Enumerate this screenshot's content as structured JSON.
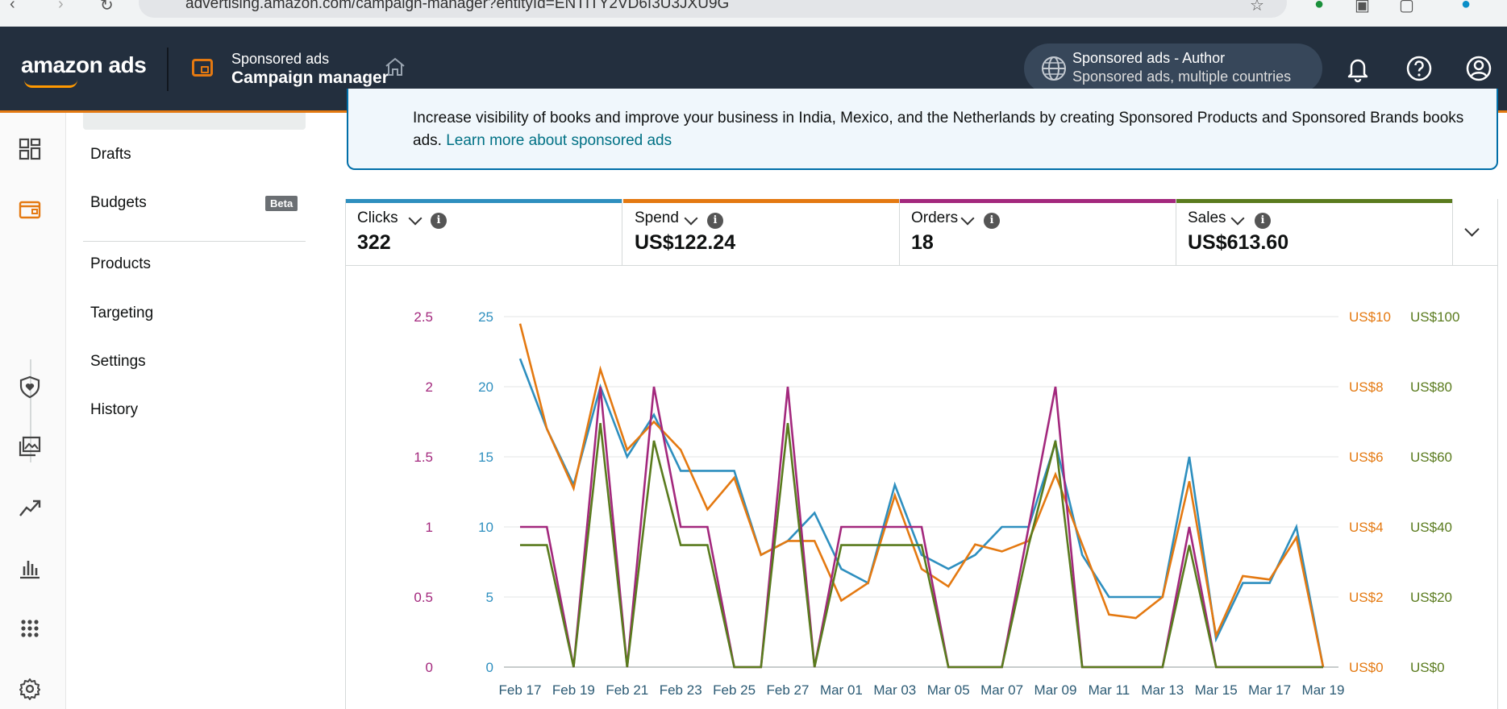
{
  "browser": {
    "url": "advertising.amazon.com/campaign-manager?entityId=ENTITY2VD6I3U3JXU9G"
  },
  "header": {
    "logo": "amazon ads",
    "product_line1": "Sponsored ads",
    "product_line2": "Campaign manager",
    "account_line1": "Sponsored ads - Author",
    "account_line2": "Sponsored ads, multiple countries",
    "icons": [
      "home-icon",
      "globe-icon",
      "bell-icon",
      "help-icon",
      "profile-icon"
    ]
  },
  "rail": {
    "icons": [
      "dashboard-icon",
      "wallet-icon",
      "shield-icon",
      "gallery-icon",
      "trend-icon",
      "bar-chart-icon",
      "apps-icon",
      "gear-icon"
    ]
  },
  "subnav": {
    "items": [
      "Drafts",
      "Budgets",
      "Products",
      "Targeting",
      "Settings",
      "History"
    ],
    "beta_badge": "Beta"
  },
  "banner": {
    "text": "Increase visibility of books and improve your business in India, Mexico, and the Netherlands by creating Sponsored Products and Sponsored Brands books ads.",
    "link": "Learn more about sponsored ads"
  },
  "metrics": [
    {
      "name": "Clicks",
      "value": "322",
      "color": "#2e8fbf"
    },
    {
      "name": "Spend",
      "value": "US$122.24",
      "color": "#e47911"
    },
    {
      "name": "Orders",
      "value": "18",
      "color": "#a3287d"
    },
    {
      "name": "Sales",
      "value": "US$613.60",
      "color": "#5a7b1e"
    }
  ],
  "chart_data": {
    "type": "line",
    "x_ticks": [
      "Feb 17",
      "Feb 19",
      "Feb 21",
      "Feb 23",
      "Feb 25",
      "Feb 27",
      "Mar 01",
      "Mar 03",
      "Mar 05",
      "Mar 07",
      "Mar 09",
      "Mar 11",
      "Mar 13",
      "Mar 15",
      "Mar 17",
      "Mar 19"
    ],
    "x": [
      "Feb 17",
      "Feb 18",
      "Feb 19",
      "Feb 20",
      "Feb 21",
      "Feb 22",
      "Feb 23",
      "Feb 24",
      "Feb 25",
      "Feb 26",
      "Feb 27",
      "Feb 28",
      "Mar 01",
      "Mar 02",
      "Mar 03",
      "Mar 04",
      "Mar 05",
      "Mar 06",
      "Mar 07",
      "Mar 08",
      "Mar 09",
      "Mar 10",
      "Mar 11",
      "Mar 12",
      "Mar 13",
      "Mar 14",
      "Mar 15",
      "Mar 16",
      "Mar 17",
      "Mar 18",
      "Mar 19"
    ],
    "axes": {
      "orders": {
        "ticks": [
          "0",
          "0.5",
          "1",
          "1.5",
          "2",
          "2.5"
        ],
        "max": 2.5,
        "color": "#a3287d"
      },
      "clicks": {
        "ticks": [
          "0",
          "5",
          "10",
          "15",
          "20",
          "25"
        ],
        "max": 25,
        "color": "#2e8fbf"
      },
      "spend": {
        "ticks": [
          "US$0",
          "US$2",
          "US$4",
          "US$6",
          "US$8",
          "US$10"
        ],
        "max": 10,
        "color": "#e47911"
      },
      "sales": {
        "ticks": [
          "US$0",
          "US$20",
          "US$40",
          "US$60",
          "US$80",
          "US$100"
        ],
        "max": 100,
        "color": "#5a7b1e"
      }
    },
    "series": [
      {
        "name": "Clicks",
        "axis": "clicks",
        "color": "#2e8fbf",
        "values": [
          22,
          17,
          13,
          20,
          15,
          18,
          14,
          14,
          14,
          8,
          9,
          11,
          7,
          6,
          13,
          8,
          7,
          8,
          10,
          10,
          16,
          8,
          5,
          5,
          5,
          15,
          2,
          6,
          6,
          10,
          0
        ]
      },
      {
        "name": "Spend",
        "axis": "spend",
        "color": "#e47911",
        "values": [
          9.8,
          6.8,
          5.1,
          8.5,
          6.2,
          7.0,
          6.2,
          4.5,
          5.4,
          3.2,
          3.6,
          3.6,
          1.9,
          2.4,
          4.9,
          2.8,
          2.3,
          3.5,
          3.3,
          3.6,
          5.5,
          3.5,
          1.5,
          1.4,
          2.0,
          5.3,
          0.9,
          2.6,
          2.5,
          3.7,
          0
        ]
      },
      {
        "name": "Orders",
        "axis": "orders",
        "color": "#a3287d",
        "values": [
          1,
          1,
          0,
          2,
          0,
          2,
          1,
          1,
          0,
          0,
          2,
          0,
          1,
          1,
          1,
          1,
          0,
          0,
          0,
          1,
          2,
          0,
          0,
          0,
          0,
          1,
          0,
          0,
          0,
          0,
          0
        ]
      },
      {
        "name": "Sales",
        "axis": "sales",
        "color": "#5a7b1e",
        "values": [
          34.8,
          34.8,
          0,
          69.6,
          0,
          64.6,
          34.8,
          34.8,
          0,
          0,
          69.6,
          0,
          34.8,
          34.8,
          34.8,
          34.8,
          0,
          0,
          0,
          34.8,
          64.6,
          0,
          0,
          0,
          0,
          34.8,
          0,
          0,
          0,
          0,
          0
        ]
      }
    ]
  }
}
